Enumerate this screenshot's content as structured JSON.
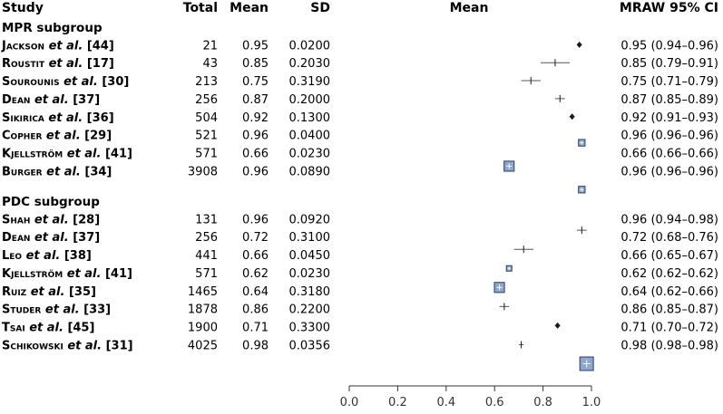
{
  "chart_data": {
    "type": "forest",
    "headers": {
      "study": "Study",
      "total": "Total",
      "mean": "Mean",
      "sd": "SD",
      "plot": "Mean",
      "ci": "MRAW 95% CI"
    },
    "xlim": [
      0,
      1
    ],
    "xticks": [
      "0.0",
      "0.2",
      "0.4",
      "0.6",
      "0.8",
      "1.0"
    ],
    "groups": [
      {
        "name": "MPR subgroup",
        "studies": [
          {
            "author": "Jackson",
            "etal": "et al.",
            "ref": "[44]",
            "total": "21",
            "mean": "0.95",
            "sd": "0.0200",
            "ci": "0.95 (0.94–0.96)",
            "est": 0.95,
            "lo": 0.94,
            "hi": 0.96,
            "weight": 1.0
          },
          {
            "author": "Roustit",
            "etal": "et al.",
            "ref": "[17]",
            "total": "43",
            "mean": "0.85",
            "sd": "0.2030",
            "ci": "0.85 (0.79–0.91)",
            "est": 0.85,
            "lo": 0.79,
            "hi": 0.91,
            "weight": 0.6
          },
          {
            "author": "Sourounis",
            "etal": "et al.",
            "ref": "[30]",
            "total": "213",
            "mean": "0.75",
            "sd": "0.3190",
            "ci": "0.75 (0.71–0.79)",
            "est": 0.75,
            "lo": 0.71,
            "hi": 0.79,
            "weight": 0.6
          },
          {
            "author": "Dean",
            "etal": "et al.",
            "ref": "[37]",
            "total": "256",
            "mean": "0.87",
            "sd": "0.2000",
            "ci": "0.87 (0.85–0.89)",
            "est": 0.87,
            "lo": 0.85,
            "hi": 0.89,
            "weight": 0.6
          },
          {
            "author": "Sikirica",
            "etal": "et al.",
            "ref": "[36]",
            "total": "504",
            "mean": "0.92",
            "sd": "0.1300",
            "ci": "0.92 (0.91–0.93)",
            "est": 0.92,
            "lo": 0.91,
            "hi": 0.93,
            "weight": 1.0
          },
          {
            "author": "Copher",
            "etal": "et al.",
            "ref": "[29]",
            "total": "521",
            "mean": "0.96",
            "sd": "0.0400",
            "ci": "0.96 (0.96–0.96)",
            "est": 0.96,
            "lo": 0.96,
            "hi": 0.96,
            "weight": 1.4
          },
          {
            "author": "Kjellström",
            "etal": "et al.",
            "ref": "[41]",
            "total": "571",
            "mean": "0.66",
            "sd": "0.0230",
            "ci": "0.66 (0.66–0.66)",
            "est": 0.66,
            "lo": 0.66,
            "hi": 0.66,
            "weight": 2.0
          },
          {
            "author": "Burger",
            "etal": "et al.",
            "ref": "[34]",
            "total": "3908",
            "mean": "0.96",
            "sd": "0.0890",
            "ci": "0.96 (0.96–0.96)",
            "est": 0.96,
            "lo": 0.96,
            "hi": 0.96,
            "weight": 1.4
          }
        ]
      },
      {
        "name": "PDC subgroup",
        "studies": [
          {
            "author": "Shah",
            "etal": "et al.",
            "ref": "[28]",
            "total": "131",
            "mean": "0.96",
            "sd": "0.0920",
            "ci": "0.96 (0.94–0.98)",
            "est": 0.96,
            "lo": 0.94,
            "hi": 0.98,
            "weight": 0.6
          },
          {
            "author": "Dean",
            "etal": "et al.",
            "ref": "[37]",
            "total": "256",
            "mean": "0.72",
            "sd": "0.3100",
            "ci": "0.72 (0.68–0.76)",
            "est": 0.72,
            "lo": 0.68,
            "hi": 0.76,
            "weight": 0.6
          },
          {
            "author": "Leo",
            "etal": "et al.",
            "ref": "[38]",
            "total": "441",
            "mean": "0.66",
            "sd": "0.0450",
            "ci": "0.66 (0.65–0.67)",
            "est": 0.66,
            "lo": 0.65,
            "hi": 0.67,
            "weight": 1.2
          },
          {
            "author": "Kjellström",
            "etal": "et al.",
            "ref": "[41]",
            "total": "571",
            "mean": "0.62",
            "sd": "0.0230",
            "ci": "0.62 (0.62–0.62)",
            "est": 0.62,
            "lo": 0.62,
            "hi": 0.62,
            "weight": 2.0
          },
          {
            "author": "Ruiz",
            "etal": "et al.",
            "ref": "[35]",
            "total": "1465",
            "mean": "0.64",
            "sd": "0.3180",
            "ci": "0.64 (0.62–0.66)",
            "est": 0.64,
            "lo": 0.62,
            "hi": 0.66,
            "weight": 0.6
          },
          {
            "author": "Studer",
            "etal": "et al.",
            "ref": "[33]",
            "total": "1878",
            "mean": "0.86",
            "sd": "0.2200",
            "ci": "0.86 (0.85–0.87)",
            "est": 0.86,
            "lo": 0.85,
            "hi": 0.87,
            "weight": 1.0
          },
          {
            "author": "Tsai",
            "etal": "et al.",
            "ref": "[45]",
            "total": "1900",
            "mean": "0.71",
            "sd": "0.3300",
            "ci": "0.71 (0.70–0.72)",
            "est": 0.71,
            "lo": 0.7,
            "hi": 0.72,
            "weight": 0.6
          },
          {
            "author": "Schikowski",
            "etal": "et al.",
            "ref": "[31]",
            "total": "4025",
            "mean": "0.98",
            "sd": "0.0356",
            "ci": "0.98 (0.98–0.98)",
            "est": 0.98,
            "lo": 0.98,
            "hi": 0.98,
            "weight": 2.6
          }
        ]
      }
    ],
    "colors": {
      "box_fill": "#8fa7cc",
      "box_stroke": "#2c3e66",
      "point": "#1a1a1a",
      "line": "#555555",
      "text": "#1a1a1a"
    }
  }
}
